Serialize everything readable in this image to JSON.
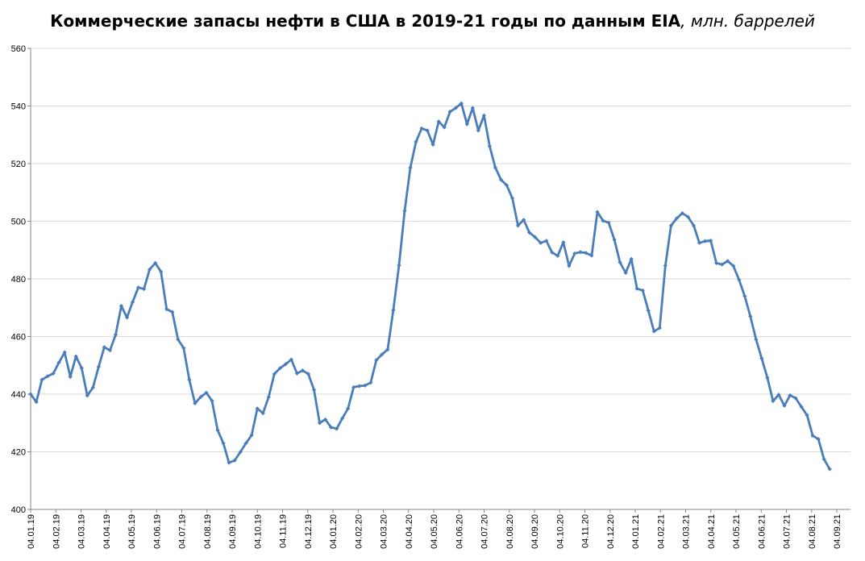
{
  "chart_data": {
    "type": "line",
    "title": "Коммерческие запасы нефти в США в 2019-21 годы по данным EIA",
    "title_unit": ", млн. баррелей",
    "xlabel": "",
    "ylabel": "",
    "ylim": [
      400,
      560
    ],
    "yticks": [
      400,
      420,
      440,
      460,
      480,
      500,
      520,
      540,
      560
    ],
    "grid": true,
    "legend": "none",
    "x_tick_labels": [
      "04.01.19",
      "04.02.19",
      "04.03.19",
      "04.04.19",
      "04.05.19",
      "04.06.19",
      "04.07.19",
      "04.08.19",
      "04.09.19",
      "04.10.19",
      "04.11.19",
      "04.12.19",
      "04.01.20",
      "04.02.20",
      "04.03.20",
      "04.04.20",
      "04.05.20",
      "04.06.20",
      "04.07.20",
      "04.08.20",
      "04.09.20",
      "04.10.20",
      "04.11.20",
      "04.12.20",
      "04.01.21",
      "04.02.21",
      "04.03.21",
      "04.04.21",
      "04.05.21",
      "04.06.21",
      "04.07.21",
      "04.08.21",
      "04.09.21"
    ],
    "series": [
      {
        "name": "",
        "color": "#4a7ebb",
        "values": [
          440.0,
          437.3,
          445.0,
          446.2,
          447.2,
          451.0,
          454.5,
          446.0,
          453.1,
          449.1,
          439.5,
          442.3,
          449.5,
          456.3,
          455.2,
          460.6,
          470.6,
          466.6,
          472.0,
          477.0,
          476.5,
          483.3,
          485.5,
          482.5,
          469.5,
          468.5,
          459.0,
          456.0,
          445.0,
          436.8,
          439.0,
          440.5,
          437.7,
          427.5,
          423.0,
          416.2,
          417.0,
          419.9,
          423.0,
          425.8,
          435.0,
          433.4,
          439.0,
          447.0,
          449.0,
          450.4,
          452.0,
          447.2,
          448.2,
          447.0,
          441.5,
          430.0,
          431.2,
          428.5,
          428.0,
          431.6,
          435.0,
          442.4,
          442.8,
          443.0,
          444.0,
          451.8,
          453.8,
          455.5,
          469.2,
          484.7,
          503.6,
          518.6,
          527.6,
          532.2,
          531.5,
          526.6,
          534.6,
          532.6,
          538.0,
          539.3,
          540.9,
          533.7,
          539.3,
          531.5,
          536.7,
          526.0,
          518.6,
          514.4,
          512.5,
          508.0,
          498.5,
          500.5,
          496.1,
          494.5,
          492.5,
          493.2,
          489.2,
          488.0,
          492.7,
          484.5,
          488.8,
          489.3,
          489.0,
          488.1,
          503.2,
          500.2,
          499.5,
          493.6,
          485.7,
          482.1,
          486.9,
          476.6,
          476.0,
          469.0,
          461.8,
          463.0,
          484.6,
          498.5,
          501.0,
          502.8,
          501.5,
          498.5,
          492.5,
          493.1,
          493.3,
          485.5,
          485.0,
          486.2,
          484.5,
          479.7,
          474.0,
          467.0,
          459.0,
          452.4,
          445.7,
          437.6,
          439.8,
          436.0,
          439.6,
          438.6,
          435.6,
          432.7,
          425.6,
          424.4,
          417.4,
          414.0
        ]
      }
    ]
  }
}
